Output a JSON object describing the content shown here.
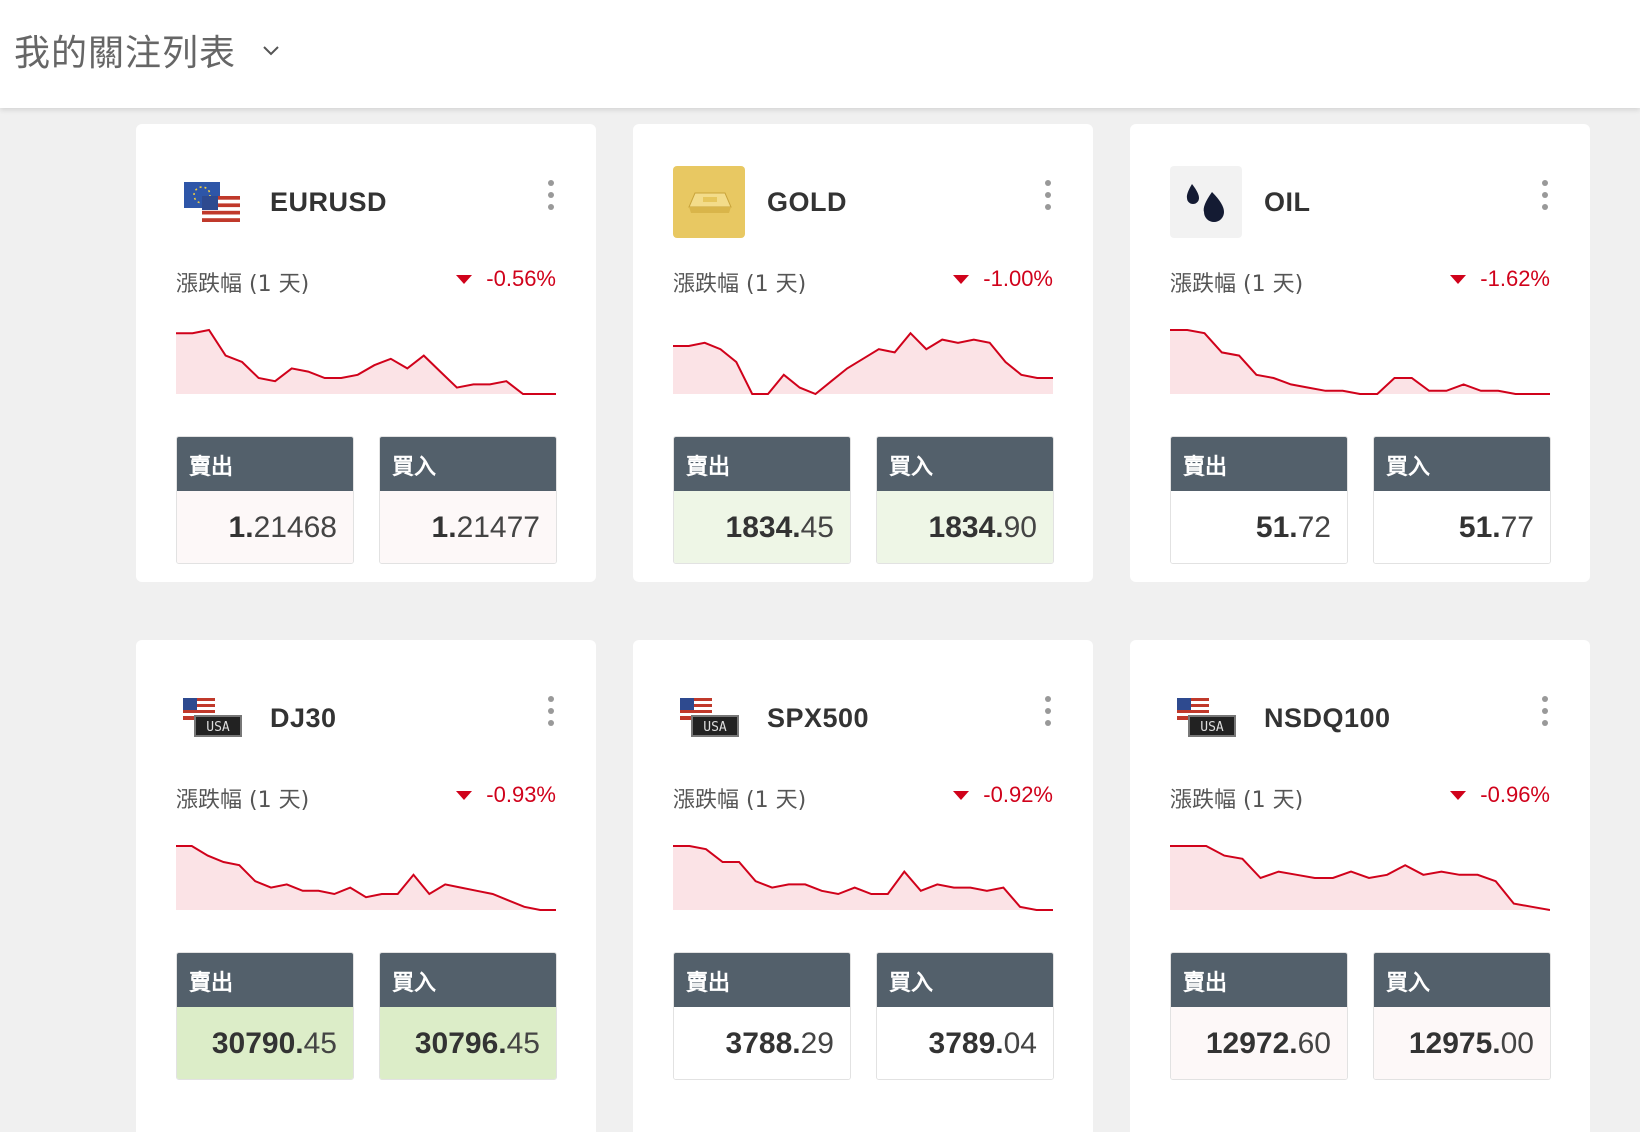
{
  "header": {
    "title": "我的關注列表"
  },
  "labels": {
    "change": "漲跌幅 (1 天)",
    "sell": "賣出",
    "buy": "買入"
  },
  "colors": {
    "down": "#d0021b",
    "price_header": "#53606b"
  },
  "cards": [
    {
      "symbol": "EURUSD",
      "icon": "eu-us-flag-icon",
      "change": "-0.56%",
      "sell_big": "1.",
      "sell_small": "21468",
      "buy_big": "1.",
      "buy_small": "21477",
      "tone": "down",
      "spark": [
        0.95,
        0.95,
        1.0,
        0.6,
        0.5,
        0.25,
        0.2,
        0.4,
        0.35,
        0.25,
        0.25,
        0.3,
        0.45,
        0.55,
        0.4,
        0.6,
        0.35,
        0.1,
        0.15,
        0.15,
        0.2,
        0.0,
        0.0,
        0.0
      ]
    },
    {
      "symbol": "GOLD",
      "icon": "gold-bar-icon",
      "change": "-1.00%",
      "sell_big": "1834.",
      "sell_small": "45",
      "buy_big": "1834.",
      "buy_small": "90",
      "tone": "up",
      "spark": [
        0.75,
        0.75,
        0.8,
        0.7,
        0.5,
        0.0,
        0.0,
        0.3,
        0.1,
        0.0,
        0.2,
        0.4,
        0.55,
        0.7,
        0.65,
        0.95,
        0.7,
        0.85,
        0.8,
        0.85,
        0.8,
        0.5,
        0.3,
        0.25,
        0.25
      ]
    },
    {
      "symbol": "OIL",
      "icon": "oil-drops-icon",
      "change": "-1.62%",
      "sell_big": "51.",
      "sell_small": "72",
      "buy_big": "51.",
      "buy_small": "77",
      "tone": "neutral",
      "spark": [
        1.0,
        1.0,
        0.95,
        0.65,
        0.6,
        0.3,
        0.25,
        0.15,
        0.1,
        0.05,
        0.05,
        0.0,
        0.0,
        0.25,
        0.25,
        0.05,
        0.05,
        0.15,
        0.05,
        0.05,
        0.0,
        0.0,
        0.0
      ]
    },
    {
      "symbol": "DJ30",
      "icon": "us-flag-usa-icon",
      "change": "-0.93%",
      "sell_big": "30790.",
      "sell_small": "45",
      "buy_big": "30796.",
      "buy_small": "45",
      "tone": "upstrong",
      "spark": [
        1.0,
        1.0,
        0.85,
        0.75,
        0.7,
        0.45,
        0.35,
        0.4,
        0.3,
        0.3,
        0.25,
        0.35,
        0.2,
        0.25,
        0.25,
        0.55,
        0.25,
        0.4,
        0.35,
        0.3,
        0.25,
        0.15,
        0.05,
        0.0,
        0.0
      ]
    },
    {
      "symbol": "SPX500",
      "icon": "us-flag-usa-icon",
      "change": "-0.92%",
      "sell_big": "3788.",
      "sell_small": "29",
      "buy_big": "3789.",
      "buy_small": "04",
      "tone": "neutral",
      "spark": [
        1.0,
        1.0,
        0.95,
        0.75,
        0.75,
        0.45,
        0.35,
        0.4,
        0.4,
        0.3,
        0.25,
        0.35,
        0.25,
        0.25,
        0.6,
        0.3,
        0.4,
        0.35,
        0.35,
        0.3,
        0.35,
        0.05,
        0.0,
        0.0
      ]
    },
    {
      "symbol": "NSDQ100",
      "icon": "us-flag-usa-icon",
      "change": "-0.96%",
      "sell_big": "12972.",
      "sell_small": "60",
      "buy_big": "12975.",
      "buy_small": "00",
      "tone": "down",
      "spark": [
        1.0,
        1.0,
        1.0,
        0.85,
        0.8,
        0.5,
        0.6,
        0.55,
        0.5,
        0.5,
        0.6,
        0.5,
        0.55,
        0.7,
        0.55,
        0.6,
        0.55,
        0.55,
        0.45,
        0.1,
        0.05,
        0.0
      ]
    }
  ]
}
